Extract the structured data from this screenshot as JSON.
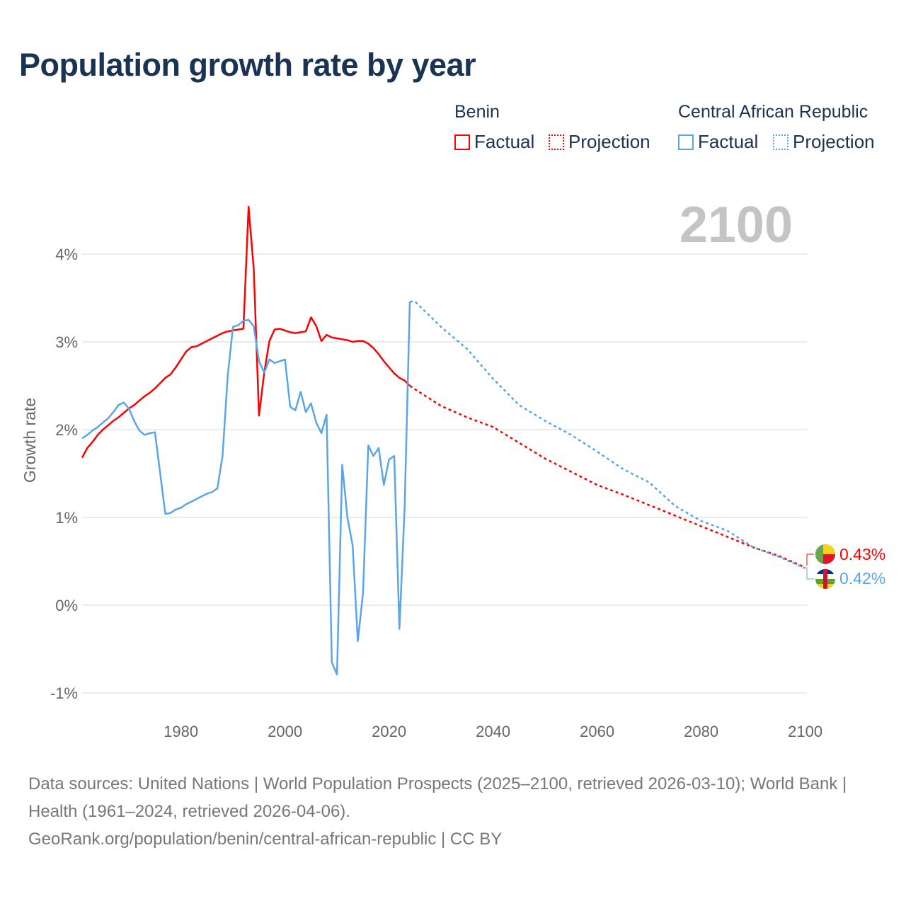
{
  "title": "Population growth rate by year",
  "legend": {
    "groups": [
      {
        "name": "Benin",
        "factual_label": "Factual",
        "projection_label": "Projection",
        "color": "#ff0000"
      },
      {
        "name": "Central African Republic",
        "factual_label": "Factual",
        "projection_label": "Projection",
        "color": "#5aa5ea"
      }
    ]
  },
  "footer": {
    "sources": "Data sources: United Nations | World Population Prospects (2025–2100, retrieved 2026-03-10); World Bank | Health (1961–2024, retrieved 2026-04-06).",
    "url": "GeoRank.org/population/benin/central-african-republic | CC BY"
  },
  "chart_data": {
    "type": "line",
    "title": "Population growth rate by year",
    "ylabel": "Growth rate",
    "xlabel": "",
    "current_year_label": "2100",
    "xlim": [
      1961,
      2100
    ],
    "ylim": [
      -1.2,
      4.6
    ],
    "x_ticks": [
      1980,
      2000,
      2020,
      2040,
      2060,
      2080,
      2100
    ],
    "y_ticks": [
      -1,
      0,
      1,
      2,
      3,
      4
    ],
    "y_tick_labels": [
      "-1%",
      "0%",
      "1%",
      "2%",
      "3%",
      "4%"
    ],
    "grid": true,
    "series": [
      {
        "name": "Benin",
        "color": "#ff0000",
        "end_label": "0.43%",
        "factual": {
          "start_year": 1961,
          "values": [
            1.68,
            1.79,
            1.86,
            1.94,
            2.0,
            2.05,
            2.1,
            2.14,
            2.19,
            2.24,
            2.28,
            2.33,
            2.38,
            2.42,
            2.47,
            2.53,
            2.59,
            2.63,
            2.71,
            2.8,
            2.89,
            2.94,
            2.95,
            2.98,
            3.01,
            3.04,
            3.07,
            3.1,
            3.12,
            3.13,
            3.14,
            3.15,
            4.54,
            3.83,
            2.16,
            2.65,
            3.01,
            3.14,
            3.15,
            3.13,
            3.11,
            3.1,
            3.11,
            3.12,
            3.28,
            3.18,
            3.01,
            3.08,
            3.05,
            3.04,
            3.03,
            3.02,
            3.0,
            3.01,
            3.01,
            2.98,
            2.93,
            2.86,
            2.78,
            2.71,
            2.64,
            2.59,
            2.56,
            2.5
          ]
        },
        "projection": {
          "years": [
            2024,
            2025,
            2030,
            2035,
            2040,
            2045,
            2050,
            2055,
            2060,
            2065,
            2070,
            2075,
            2080,
            2085,
            2090,
            2095,
            2100
          ],
          "values": [
            2.5,
            2.46,
            2.27,
            2.14,
            2.03,
            1.85,
            1.67,
            1.52,
            1.37,
            1.26,
            1.14,
            1.02,
            0.9,
            0.78,
            0.66,
            0.56,
            0.43
          ]
        }
      },
      {
        "name": "Central African Republic",
        "color": "#5aa5ea",
        "end_label": "0.42%",
        "factual": {
          "start_year": 1961,
          "values": [
            1.9,
            1.94,
            1.99,
            2.03,
            2.08,
            2.13,
            2.2,
            2.28,
            2.31,
            2.24,
            2.1,
            1.99,
            1.94,
            1.96,
            1.97,
            1.5,
            1.04,
            1.05,
            1.09,
            1.11,
            1.15,
            1.18,
            1.21,
            1.24,
            1.27,
            1.29,
            1.33,
            1.7,
            2.62,
            3.17,
            3.19,
            3.24,
            3.25,
            3.18,
            2.78,
            2.65,
            2.8,
            2.76,
            2.78,
            2.8,
            2.26,
            2.22,
            2.43,
            2.2,
            2.3,
            2.08,
            1.96,
            2.17,
            -0.65,
            -0.79,
            1.6,
            1.0,
            0.68,
            -0.41,
            0.14,
            1.82,
            1.7,
            1.79,
            1.37,
            1.66,
            1.7,
            -0.27,
            1.12,
            3.46
          ]
        },
        "projection": {
          "years": [
            2024,
            2025,
            2030,
            2035,
            2040,
            2045,
            2050,
            2055,
            2060,
            2065,
            2070,
            2075,
            2080,
            2085,
            2090,
            2095,
            2100
          ],
          "values": [
            3.46,
            3.46,
            3.17,
            2.92,
            2.58,
            2.28,
            2.1,
            1.94,
            1.75,
            1.55,
            1.4,
            1.13,
            0.96,
            0.85,
            0.66,
            0.55,
            0.42
          ]
        }
      }
    ]
  }
}
